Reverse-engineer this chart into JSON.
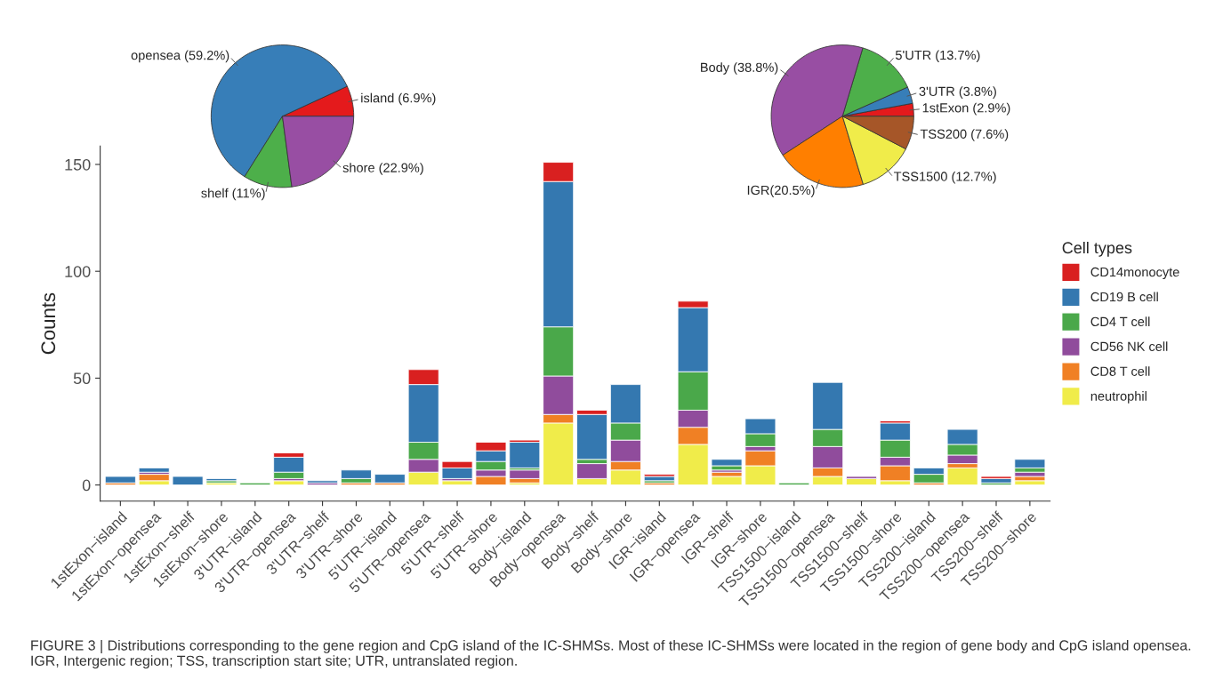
{
  "chart_data": [
    {
      "type": "pie",
      "categories": [
        "island (6.9%)",
        "opensea (59.2%)",
        "shelf (11%)",
        "shore (22.9%)"
      ],
      "values": [
        6.9,
        59.2,
        11,
        22.9
      ],
      "colors": [
        "#e41a1c",
        "#377eb8",
        "#4daf4a",
        "#984ea3"
      ]
    },
    {
      "type": "pie",
      "categories": [
        "1stExon (2.9%)",
        "3'UTR (3.8%)",
        "5'UTR (13.7%)",
        "Body (38.8%)",
        "IGR(20.5%)",
        "TSS1500 (12.7%)",
        "TSS200 (7.6%)"
      ],
      "values": [
        2.9,
        3.8,
        13.7,
        38.8,
        20.5,
        12.7,
        7.6
      ],
      "colors": [
        "#e41a1c",
        "#377eb8",
        "#4daf4a",
        "#984ea3",
        "#ff7f00",
        "#f0ec4a",
        "#a65628"
      ]
    },
    {
      "type": "bar",
      "stacked": true,
      "ylabel": "Counts",
      "legend_title": "Cell types",
      "legend": "right",
      "grid": false,
      "ylim": [
        -7.55,
        158.55
      ],
      "yticks": [
        0,
        50,
        100,
        150
      ],
      "categories": [
        "1stExon−island",
        "1stExon−opensea",
        "1stExon−shelf",
        "1stExon−shore",
        "3'UTR−island",
        "3'UTR−opensea",
        "3'UTR−shelf",
        "3'UTR−shore",
        "5'UTR−island",
        "5'UTR−opensea",
        "5'UTR−shelf",
        "5'UTR−shore",
        "Body−island",
        "Body−opensea",
        "Body−shelf",
        "Body−shore",
        "IGR−island",
        "IGR−opensea",
        "IGR−shelf",
        "IGR−shore",
        "TSS1500−island",
        "TSS1500−opensea",
        "TSS1500−shelf",
        "TSS1500−shore",
        "TSS200−island",
        "TSS200−opensea",
        "TSS200−shelf",
        "TSS200−shore"
      ],
      "series": [
        {
          "name": "neutrophil",
          "color": "#f0ec4a",
          "values": [
            0,
            2,
            0,
            1,
            0,
            2,
            0,
            0,
            0,
            6,
            2,
            0,
            1,
            29,
            3,
            7,
            0,
            19,
            4,
            9,
            0,
            4,
            3,
            2,
            0,
            8,
            0,
            2
          ]
        },
        {
          "name": "CD8 T cell",
          "color": "#f08024",
          "values": [
            1,
            3,
            0,
            0,
            0,
            0,
            0,
            1,
            1,
            0,
            0,
            4,
            2,
            4,
            0,
            4,
            1,
            8,
            2,
            7,
            0,
            4,
            0,
            7,
            1,
            2,
            0,
            2
          ]
        },
        {
          "name": "CD56 NK cell",
          "color": "#904c9c",
          "values": [
            0,
            1,
            0,
            0,
            0,
            1,
            1,
            0,
            0,
            6,
            1,
            3,
            4,
            18,
            7,
            10,
            0,
            8,
            1,
            2,
            0,
            10,
            1,
            4,
            0,
            4,
            0,
            2
          ]
        },
        {
          "name": "CD4 T cell",
          "color": "#4aa84a",
          "values": [
            0,
            0,
            0,
            1,
            1,
            3,
            0,
            2,
            0,
            8,
            0,
            4,
            1,
            23,
            2,
            8,
            1,
            18,
            2,
            6,
            1,
            8,
            0,
            8,
            4,
            5,
            1,
            2
          ]
        },
        {
          "name": "CD19 B cell",
          "color": "#3478b0",
          "values": [
            3,
            2,
            4,
            1,
            0,
            7,
            1,
            4,
            4,
            27,
            5,
            5,
            12,
            68,
            21,
            18,
            2,
            30,
            3,
            7,
            0,
            22,
            0,
            8,
            3,
            7,
            2,
            4
          ]
        },
        {
          "name": "CD14monocyte",
          "color": "#d92020",
          "values": [
            0,
            0,
            0,
            0,
            0,
            2,
            0,
            0,
            0,
            7,
            3,
            4,
            1,
            9,
            2,
            0,
            1,
            3,
            0,
            0,
            0,
            0,
            0,
            1,
            0,
            0,
            1,
            0
          ]
        }
      ],
      "annotations": [
        "FIGURE 3 | Distributions corresponding to the gene region and CpG island of the IC-SHMSs. Most of these IC-SHMSs were located in the region of gene body and CpG island opensea. IGR, Intergenic region; TSS, transcription start site; UTR, untranslated region."
      ]
    }
  ]
}
